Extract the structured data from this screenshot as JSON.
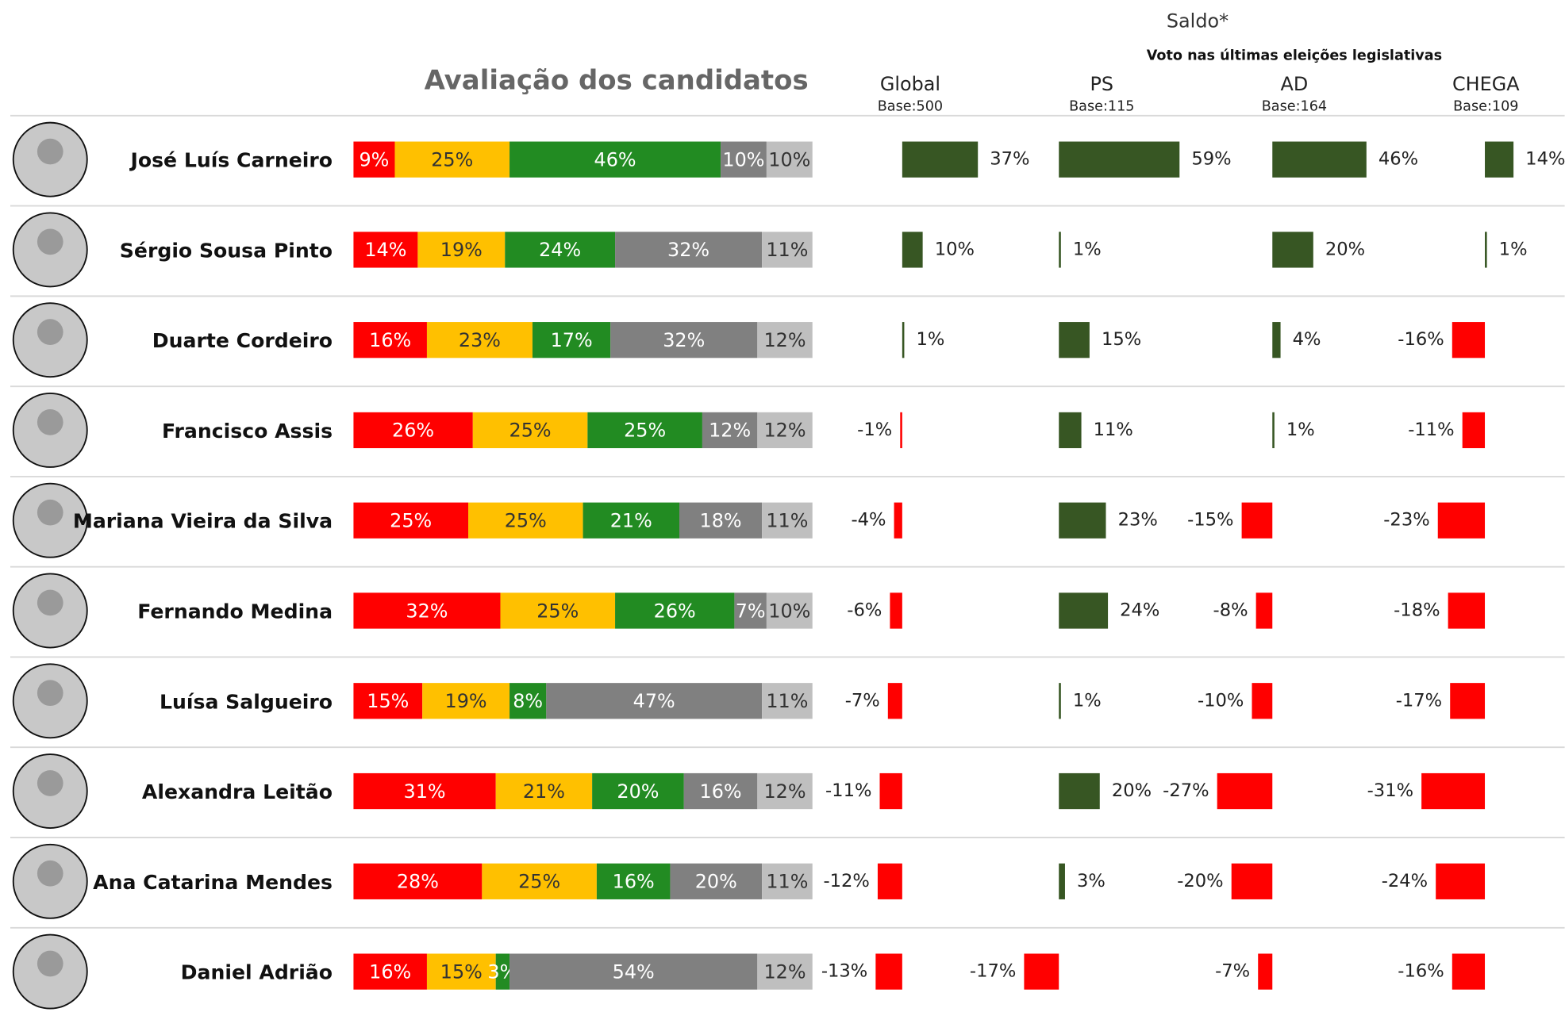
{
  "title": "Avaliação dos candidatos",
  "saldo_title": "Saldo*",
  "subtitle": "Voto nas últimas eleições legislativas",
  "columns": [
    {
      "name": "Global",
      "base": "Base:500"
    },
    {
      "name": "PS",
      "base": "Base:115"
    },
    {
      "name": "AD",
      "base": "Base:164"
    },
    {
      "name": "CHEGA",
      "base": "Base:109"
    }
  ],
  "rating_colors": [
    "#ff0000",
    "#ffc000",
    "#228b22",
    "#808080",
    "#bfbfbf"
  ],
  "saldo_colors": {
    "positive": "#375623",
    "negative": "#ff0000"
  },
  "rows": [
    {
      "name": "José Luís Carneiro",
      "rating": [
        9,
        25,
        46,
        10,
        10
      ],
      "rating_labels": [
        "9%",
        "25%",
        "46%",
        "10%",
        "10%"
      ],
      "saldo": [
        37,
        59,
        46,
        14
      ],
      "saldo_labels": [
        "37%",
        "59%",
        "46%",
        "14%"
      ]
    },
    {
      "name": "Sérgio Sousa Pinto",
      "rating": [
        14,
        19,
        24,
        32,
        11
      ],
      "rating_labels": [
        "14%",
        "19%",
        "24%",
        "32%",
        "11%"
      ],
      "saldo": [
        10,
        1,
        20,
        1
      ],
      "saldo_labels": [
        "10%",
        "1%",
        "20%",
        "1%"
      ]
    },
    {
      "name": "Duarte Cordeiro",
      "rating": [
        16,
        23,
        17,
        32,
        12
      ],
      "rating_labels": [
        "16%",
        "23%",
        "17%",
        "32%",
        "12%"
      ],
      "saldo": [
        1,
        15,
        4,
        -16
      ],
      "saldo_labels": [
        "1%",
        "15%",
        "4%",
        "-16%"
      ]
    },
    {
      "name": "Francisco Assis",
      "rating": [
        26,
        25,
        25,
        12,
        12
      ],
      "rating_labels": [
        "26%",
        "25%",
        "25%",
        "12%",
        "12%"
      ],
      "saldo": [
        -1,
        11,
        1,
        -11
      ],
      "saldo_labels": [
        "-1%",
        "11%",
        "1%",
        "-11%"
      ]
    },
    {
      "name": "Mariana Vieira da Silva",
      "rating": [
        25,
        25,
        21,
        18,
        11
      ],
      "rating_labels": [
        "25%",
        "25%",
        "21%",
        "18%",
        "11%"
      ],
      "saldo": [
        -4,
        23,
        -15,
        -23
      ],
      "saldo_labels": [
        "-4%",
        "23%",
        "-15%",
        "-23%"
      ]
    },
    {
      "name": "Fernando Medina",
      "rating": [
        32,
        25,
        26,
        7,
        10
      ],
      "rating_labels": [
        "32%",
        "25%",
        "26%",
        "7%",
        "10%"
      ],
      "saldo": [
        -6,
        24,
        -8,
        -18
      ],
      "saldo_labels": [
        "-6%",
        "24%",
        "-8%",
        "-18%"
      ]
    },
    {
      "name": "Luísa Salgueiro",
      "rating": [
        15,
        19,
        8,
        47,
        11
      ],
      "rating_labels": [
        "15%",
        "19%",
        "8%",
        "47%",
        "11%"
      ],
      "saldo": [
        -7,
        1,
        -10,
        -17
      ],
      "saldo_labels": [
        "-7%",
        "1%",
        "-10%",
        "-17%"
      ]
    },
    {
      "name": "Alexandra Leitão",
      "rating": [
        31,
        21,
        20,
        16,
        12
      ],
      "rating_labels": [
        "31%",
        "21%",
        "20%",
        "16%",
        "12%"
      ],
      "saldo": [
        -11,
        20,
        -27,
        -31
      ],
      "saldo_labels": [
        "-11%",
        "20%",
        "-27%",
        "-31%"
      ]
    },
    {
      "name": "Ana Catarina Mendes",
      "rating": [
        28,
        25,
        16,
        20,
        11
      ],
      "rating_labels": [
        "28%",
        "25%",
        "16%",
        "20%",
        "11%"
      ],
      "saldo": [
        -12,
        3,
        -20,
        -24
      ],
      "saldo_labels": [
        "-12%",
        "3%",
        "-20%",
        "-24%"
      ]
    },
    {
      "name": "Daniel Adrião",
      "rating": [
        16,
        15,
        3,
        54,
        12
      ],
      "rating_labels": [
        "16%",
        "15%",
        "3%",
        "54%",
        "12%"
      ],
      "saldo": [
        -13,
        -17,
        -7,
        -16
      ],
      "saldo_labels": [
        "-13%",
        "-17%",
        "-7%",
        "-16%"
      ]
    }
  ]
}
